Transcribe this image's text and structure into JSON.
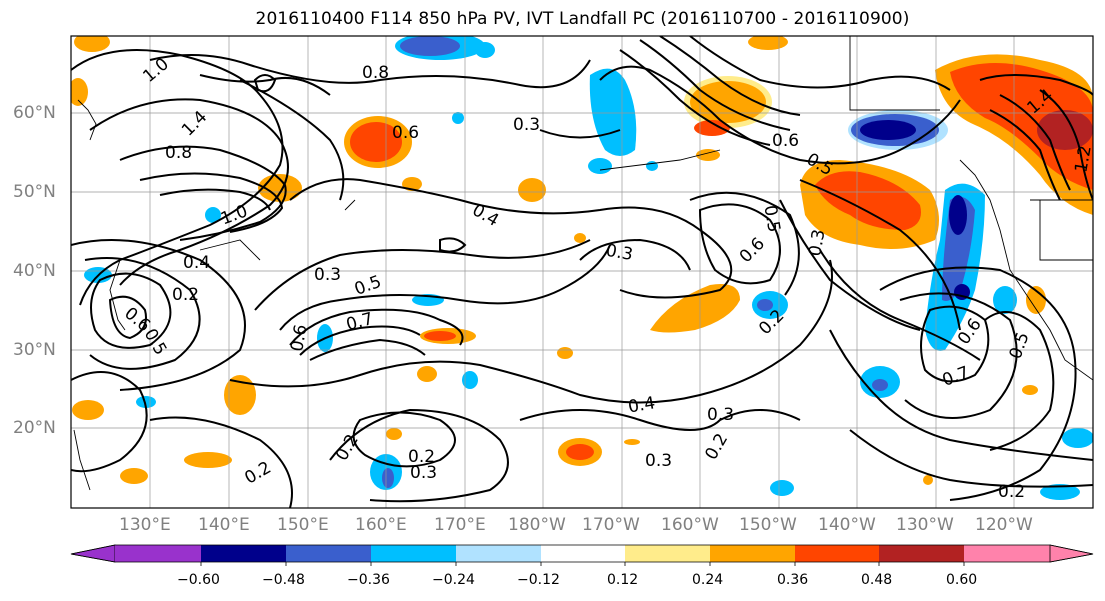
{
  "title": "2016110400 F114 850 hPa PV, IVT Landfall PC (2016110700 - 2016110900)",
  "lat_labels": [
    "60°N",
    "50°N",
    "40°N",
    "30°N",
    "20°N"
  ],
  "lon_labels": [
    "130°E",
    "140°E",
    "150°E",
    "160°E",
    "170°E",
    "180°W",
    "170°W",
    "160°W",
    "150°W",
    "140°W",
    "130°W",
    "120°W"
  ],
  "contour_labels": [
    "1.0",
    "0.8",
    "0.6",
    "0.3",
    "0.6",
    "0.5",
    "1.4",
    "0.8",
    "1.0",
    "0.4",
    "0.2",
    "0.6",
    "0.5",
    "0.3",
    "0.4",
    "0.5",
    "0.7",
    "0.6",
    "0.3",
    "0.6",
    "0.5",
    "0.3",
    "0.2",
    "0.4",
    "0.3",
    "0.2",
    "0.3",
    "0.2",
    "0.2",
    "0.3",
    "0.2",
    "0.2",
    "0.6",
    "0.5",
    "0.7",
    "1.2",
    "1.4"
  ],
  "colorbar": {
    "ticks": [
      "−0.60",
      "−0.48",
      "−0.36",
      "−0.24",
      "−0.12",
      "0.12",
      "0.24",
      "0.36",
      "0.48",
      "0.60"
    ],
    "colors": [
      "#9932cc",
      "#00008b",
      "#3a5fcd",
      "#00bfff",
      "#b0e2ff",
      "#ffffff",
      "#ffec8b",
      "#ffa500",
      "#ff4500",
      "#b22222",
      "#ff82ab"
    ]
  },
  "fill_colors": {
    "blue_dark": "#00008b",
    "blue_mid": "#3a5fcd",
    "blue": "#00bfff",
    "blue_light": "#b0e2ff",
    "yellow": "#ffec8b",
    "orange": "#ffa500",
    "red": "#ff4500",
    "dark_red": "#b22222"
  }
}
